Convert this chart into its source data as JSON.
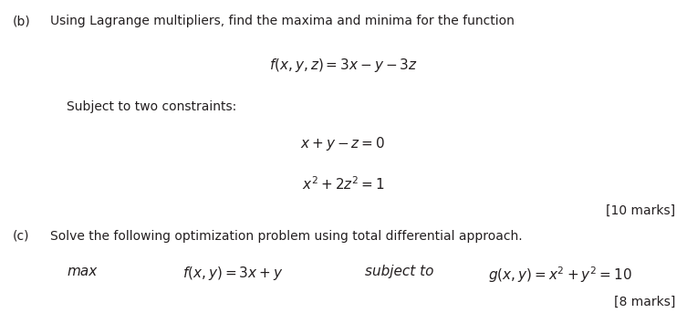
{
  "bg_color": "#ffffff",
  "text_color": "#231f20",
  "fig_width": 7.53,
  "fig_height": 3.43,
  "dpi": 100,
  "part_b_label": "(b)",
  "part_b_intro": "Using Lagrange multipliers, find the maxima and minima for the function",
  "part_b_func": "$f(x, y, z) = 3x - y - 3z$",
  "subject_label": "Subject to two constraints:",
  "constraint1": "$x + y - z = 0$",
  "constraint2": "$x^2 + 2z^2 = 1$",
  "marks_b": "[10 marks]",
  "part_c_label": "(c)",
  "part_c_intro": "Solve the following optimization problem using total differential approach.",
  "max_label": "max",
  "part_c_func": "$f(x, y) = 3x + y$",
  "subject_to": "subject to",
  "constraint_c": "$g(x, y) = x^2 + y^2 = 10$",
  "marks_c": "[8 marks]",
  "label_fs": 10,
  "intro_fs": 10,
  "formula_fs": 11,
  "marks_fs": 10
}
